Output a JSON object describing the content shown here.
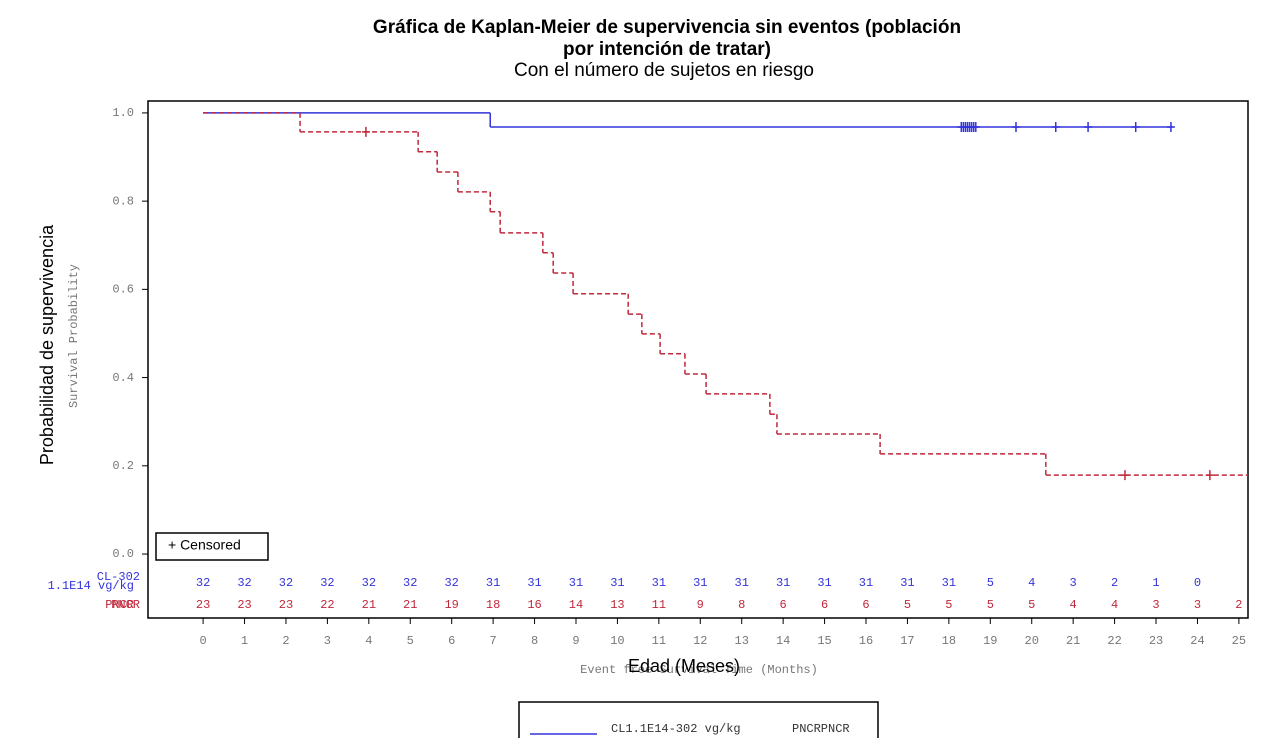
{
  "chart_data": {
    "type": "step",
    "title_lines": [
      "Gráfica de Kaplan-Meier de supervivencia sin eventos (población",
      "por intención de tratar)"
    ],
    "subtitle": "Con el número de sujetos en riesgo",
    "y_label": "Probabilidad de supervivencia",
    "y_label_original": "Survival Probability",
    "x_label": "Edad (Meses)",
    "x_label_original": "Event free Survival Time (Months)",
    "censor_legend": "+ Censored",
    "xlim": [
      -1.33,
      25.22
    ],
    "ylim": [
      -0.145,
      1.027
    ],
    "xticks": [
      0,
      1,
      2,
      3,
      4,
      5,
      6,
      7,
      8,
      9,
      10,
      11,
      12,
      13,
      14,
      15,
      16,
      17,
      18,
      19,
      20,
      21,
      22,
      23,
      24,
      25
    ],
    "yticks": [
      {
        "value": 0,
        "label": "0.0"
      },
      0.2,
      0.4,
      0.6,
      0.8,
      {
        "value": 1,
        "label": "1.0"
      }
    ],
    "series": [
      {
        "name": "CL1.1E14-302  vg/kg",
        "color": "#3333dd",
        "dashed": false,
        "risk_label_lines": [
          "CL-302",
          "1.1E14 vg/kg"
        ],
        "x": [
          0,
          6.93,
          23.4
        ],
        "values": [
          1.0,
          0.968,
          0.968
        ],
        "censored_x": [
          18.3,
          18.35,
          18.4,
          18.45,
          18.5,
          18.55,
          18.6,
          18.65,
          19.62,
          20.58,
          21.36,
          22.51,
          23.36
        ],
        "at_risk": [
          32,
          32,
          32,
          32,
          32,
          32,
          32,
          31,
          31,
          31,
          31,
          31,
          31,
          31,
          31,
          31,
          31,
          31,
          31,
          5,
          4,
          3,
          2,
          1,
          0,
          null
        ]
      },
      {
        "name": "PNCRPNCR",
        "color": "#c0283c",
        "dashed": true,
        "risk_label_lines": [
          "PNCR",
          "PNCR"
        ],
        "x": [
          0,
          2.34,
          5.19,
          5.65,
          6.15,
          6.93,
          7.17,
          8.2,
          8.45,
          8.93,
          10.26,
          10.59,
          11.03,
          11.63,
          12.14,
          13.68,
          13.85,
          16.34,
          20.34,
          25.22
        ],
        "values": [
          1.0,
          0.957,
          0.912,
          0.866,
          0.821,
          0.776,
          0.728,
          0.683,
          0.637,
          0.59,
          0.544,
          0.499,
          0.454,
          0.408,
          0.363,
          0.317,
          0.272,
          0.227,
          0.179,
          0.179
        ],
        "censored_x": [
          3.93,
          22.25,
          24.3
        ],
        "at_risk": [
          23,
          23,
          23,
          22,
          21,
          21,
          19,
          18,
          16,
          14,
          13,
          11,
          9,
          8,
          6,
          6,
          6,
          5,
          5,
          5,
          5,
          4,
          4,
          3,
          3,
          2
        ]
      }
    ]
  }
}
